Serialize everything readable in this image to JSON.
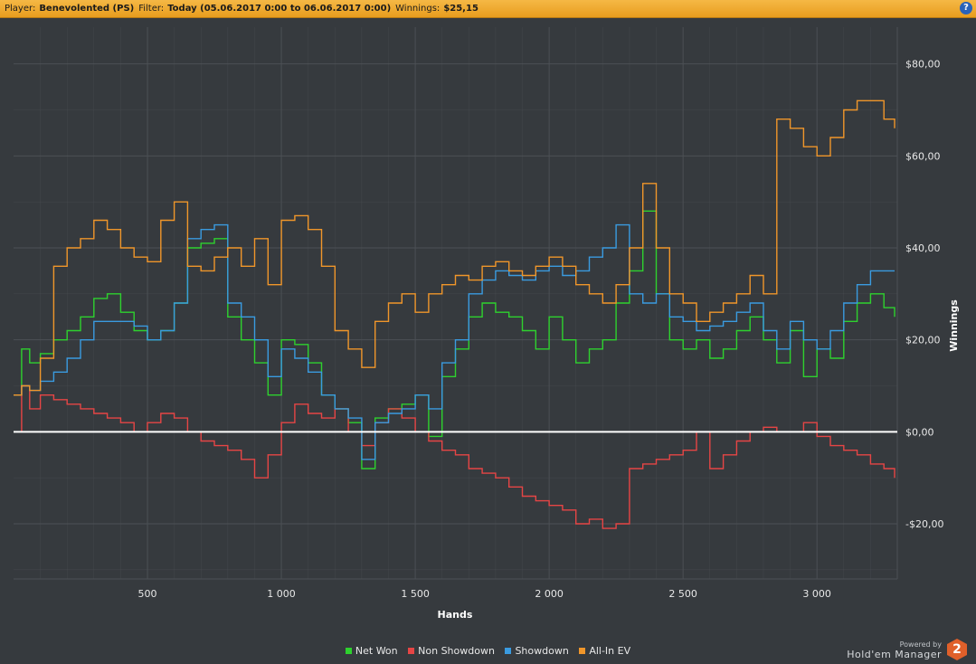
{
  "header": {
    "player_label": "Player:",
    "player_value": "Benevolented (PS)",
    "filter_label": "Filter:",
    "filter_value": "Today (05.06.2017 0:00 to 06.06.2017 0:00)",
    "winnings_label": "Winnings:",
    "winnings_value": "$25,15",
    "help": "?"
  },
  "branding": {
    "powered": "Powered by",
    "name": "Hold'em Manager",
    "logo": "2"
  },
  "colors": {
    "background": "#363a3e",
    "grid": "#4c5055",
    "zero_line": "#ffffff",
    "header": "#f0ad32"
  },
  "chart_data": {
    "type": "line",
    "xlabel": "Hands",
    "ylabel": "Winnings",
    "xlim": [
      0,
      3300
    ],
    "ylim": [
      -32,
      88
    ],
    "y_axis_side": "right",
    "grid": true,
    "legend": "bottom",
    "x_tick_values": [
      500,
      1000,
      1500,
      2000,
      2500,
      3000
    ],
    "x_tick_labels": [
      "500",
      "1 000",
      "1 500",
      "2 000",
      "2 500",
      "3 000"
    ],
    "y_tick_values": [
      -20,
      0,
      20,
      40,
      60,
      80
    ],
    "y_tick_labels": [
      "-$20,00",
      "$0,00",
      "$20,00",
      "$40,00",
      "$60,00",
      "$80,00"
    ],
    "series": [
      {
        "name": "Net Won",
        "color": "#2ed12e",
        "x": [
          0,
          30,
          60,
          100,
          150,
          200,
          250,
          300,
          350,
          400,
          450,
          500,
          550,
          600,
          650,
          700,
          750,
          800,
          850,
          900,
          950,
          1000,
          1050,
          1100,
          1150,
          1200,
          1250,
          1300,
          1350,
          1400,
          1450,
          1500,
          1550,
          1600,
          1650,
          1700,
          1750,
          1800,
          1850,
          1900,
          1950,
          2000,
          2050,
          2100,
          2150,
          2200,
          2250,
          2300,
          2350,
          2400,
          2450,
          2500,
          2550,
          2600,
          2650,
          2700,
          2750,
          2800,
          2850,
          2900,
          2950,
          3000,
          3050,
          3100,
          3150,
          3200,
          3250,
          3290
        ],
        "y": [
          8,
          18,
          15,
          17,
          20,
          22,
          25,
          29,
          30,
          26,
          22,
          20,
          22,
          28,
          40,
          41,
          42,
          25,
          20,
          15,
          8,
          20,
          19,
          15,
          8,
          5,
          2,
          -8,
          3,
          5,
          6,
          8,
          -1,
          12,
          18,
          25,
          28,
          26,
          25,
          22,
          18,
          25,
          20,
          15,
          18,
          20,
          28,
          35,
          48,
          30,
          20,
          18,
          20,
          16,
          18,
          22,
          25,
          20,
          15,
          22,
          12,
          18,
          16,
          24,
          28,
          30,
          27,
          25
        ]
      },
      {
        "name": "Non Showdown",
        "color": "#e64545",
        "x": [
          0,
          30,
          60,
          100,
          150,
          200,
          250,
          300,
          350,
          400,
          450,
          500,
          550,
          600,
          650,
          700,
          750,
          800,
          850,
          900,
          950,
          1000,
          1050,
          1100,
          1150,
          1200,
          1250,
          1300,
          1350,
          1400,
          1450,
          1500,
          1550,
          1600,
          1650,
          1700,
          1750,
          1800,
          1850,
          1900,
          1950,
          2000,
          2050,
          2100,
          2150,
          2200,
          2250,
          2300,
          2350,
          2400,
          2450,
          2500,
          2550,
          2600,
          2650,
          2700,
          2750,
          2800,
          2850,
          2900,
          2950,
          3000,
          3050,
          3100,
          3150,
          3200,
          3250,
          3290
        ],
        "y": [
          0,
          10,
          5,
          8,
          7,
          6,
          5,
          4,
          3,
          2,
          0,
          2,
          4,
          3,
          0,
          -2,
          -3,
          -4,
          -6,
          -10,
          -5,
          2,
          6,
          4,
          3,
          5,
          0,
          -3,
          2,
          5,
          3,
          0,
          -2,
          -4,
          -5,
          -8,
          -9,
          -10,
          -12,
          -14,
          -15,
          -16,
          -17,
          -20,
          -19,
          -21,
          -20,
          -8,
          -7,
          -6,
          -5,
          -4,
          0,
          -8,
          -5,
          -2,
          0,
          1,
          0,
          0,
          2,
          -1,
          -3,
          -4,
          -5,
          -7,
          -8,
          -10
        ]
      },
      {
        "name": "Showdown",
        "color": "#3a9be0",
        "x": [
          0,
          30,
          60,
          100,
          150,
          200,
          250,
          300,
          350,
          400,
          450,
          500,
          550,
          600,
          650,
          700,
          750,
          800,
          850,
          900,
          950,
          1000,
          1050,
          1100,
          1150,
          1200,
          1250,
          1300,
          1350,
          1400,
          1450,
          1500,
          1550,
          1600,
          1650,
          1700,
          1750,
          1800,
          1850,
          1900,
          1950,
          2000,
          2050,
          2100,
          2150,
          2200,
          2250,
          2300,
          2350,
          2400,
          2450,
          2500,
          2550,
          2600,
          2650,
          2700,
          2750,
          2800,
          2850,
          2900,
          2950,
          3000,
          3050,
          3100,
          3150,
          3200,
          3250,
          3290
        ],
        "y": [
          8,
          10,
          9,
          11,
          13,
          16,
          20,
          24,
          24,
          24,
          23,
          20,
          22,
          28,
          42,
          44,
          45,
          28,
          25,
          20,
          12,
          18,
          16,
          13,
          8,
          5,
          3,
          -6,
          2,
          4,
          5,
          8,
          5,
          15,
          20,
          30,
          33,
          35,
          34,
          33,
          35,
          36,
          34,
          35,
          38,
          40,
          45,
          30,
          28,
          30,
          25,
          24,
          22,
          23,
          24,
          26,
          28,
          22,
          18,
          24,
          20,
          18,
          22,
          28,
          32,
          35,
          35,
          35
        ]
      },
      {
        "name": "All-In EV",
        "color": "#f0962a",
        "x": [
          0,
          30,
          60,
          100,
          150,
          200,
          250,
          300,
          350,
          400,
          450,
          500,
          550,
          600,
          650,
          700,
          750,
          800,
          850,
          900,
          950,
          1000,
          1050,
          1100,
          1150,
          1200,
          1250,
          1300,
          1350,
          1400,
          1450,
          1500,
          1550,
          1600,
          1650,
          1700,
          1750,
          1800,
          1850,
          1900,
          1950,
          2000,
          2050,
          2100,
          2150,
          2200,
          2250,
          2300,
          2350,
          2400,
          2450,
          2500,
          2550,
          2600,
          2650,
          2700,
          2750,
          2800,
          2850,
          2900,
          2950,
          3000,
          3050,
          3100,
          3150,
          3200,
          3250,
          3290
        ],
        "y": [
          8,
          10,
          9,
          16,
          36,
          40,
          42,
          46,
          44,
          40,
          38,
          37,
          46,
          50,
          36,
          35,
          38,
          40,
          36,
          42,
          32,
          46,
          47,
          44,
          36,
          22,
          18,
          14,
          24,
          28,
          30,
          26,
          30,
          32,
          34,
          33,
          36,
          37,
          35,
          34,
          36,
          38,
          36,
          32,
          30,
          28,
          32,
          40,
          54,
          40,
          30,
          28,
          24,
          26,
          28,
          30,
          34,
          30,
          68,
          66,
          62,
          60,
          64,
          70,
          72,
          72,
          68,
          66
        ]
      }
    ]
  }
}
